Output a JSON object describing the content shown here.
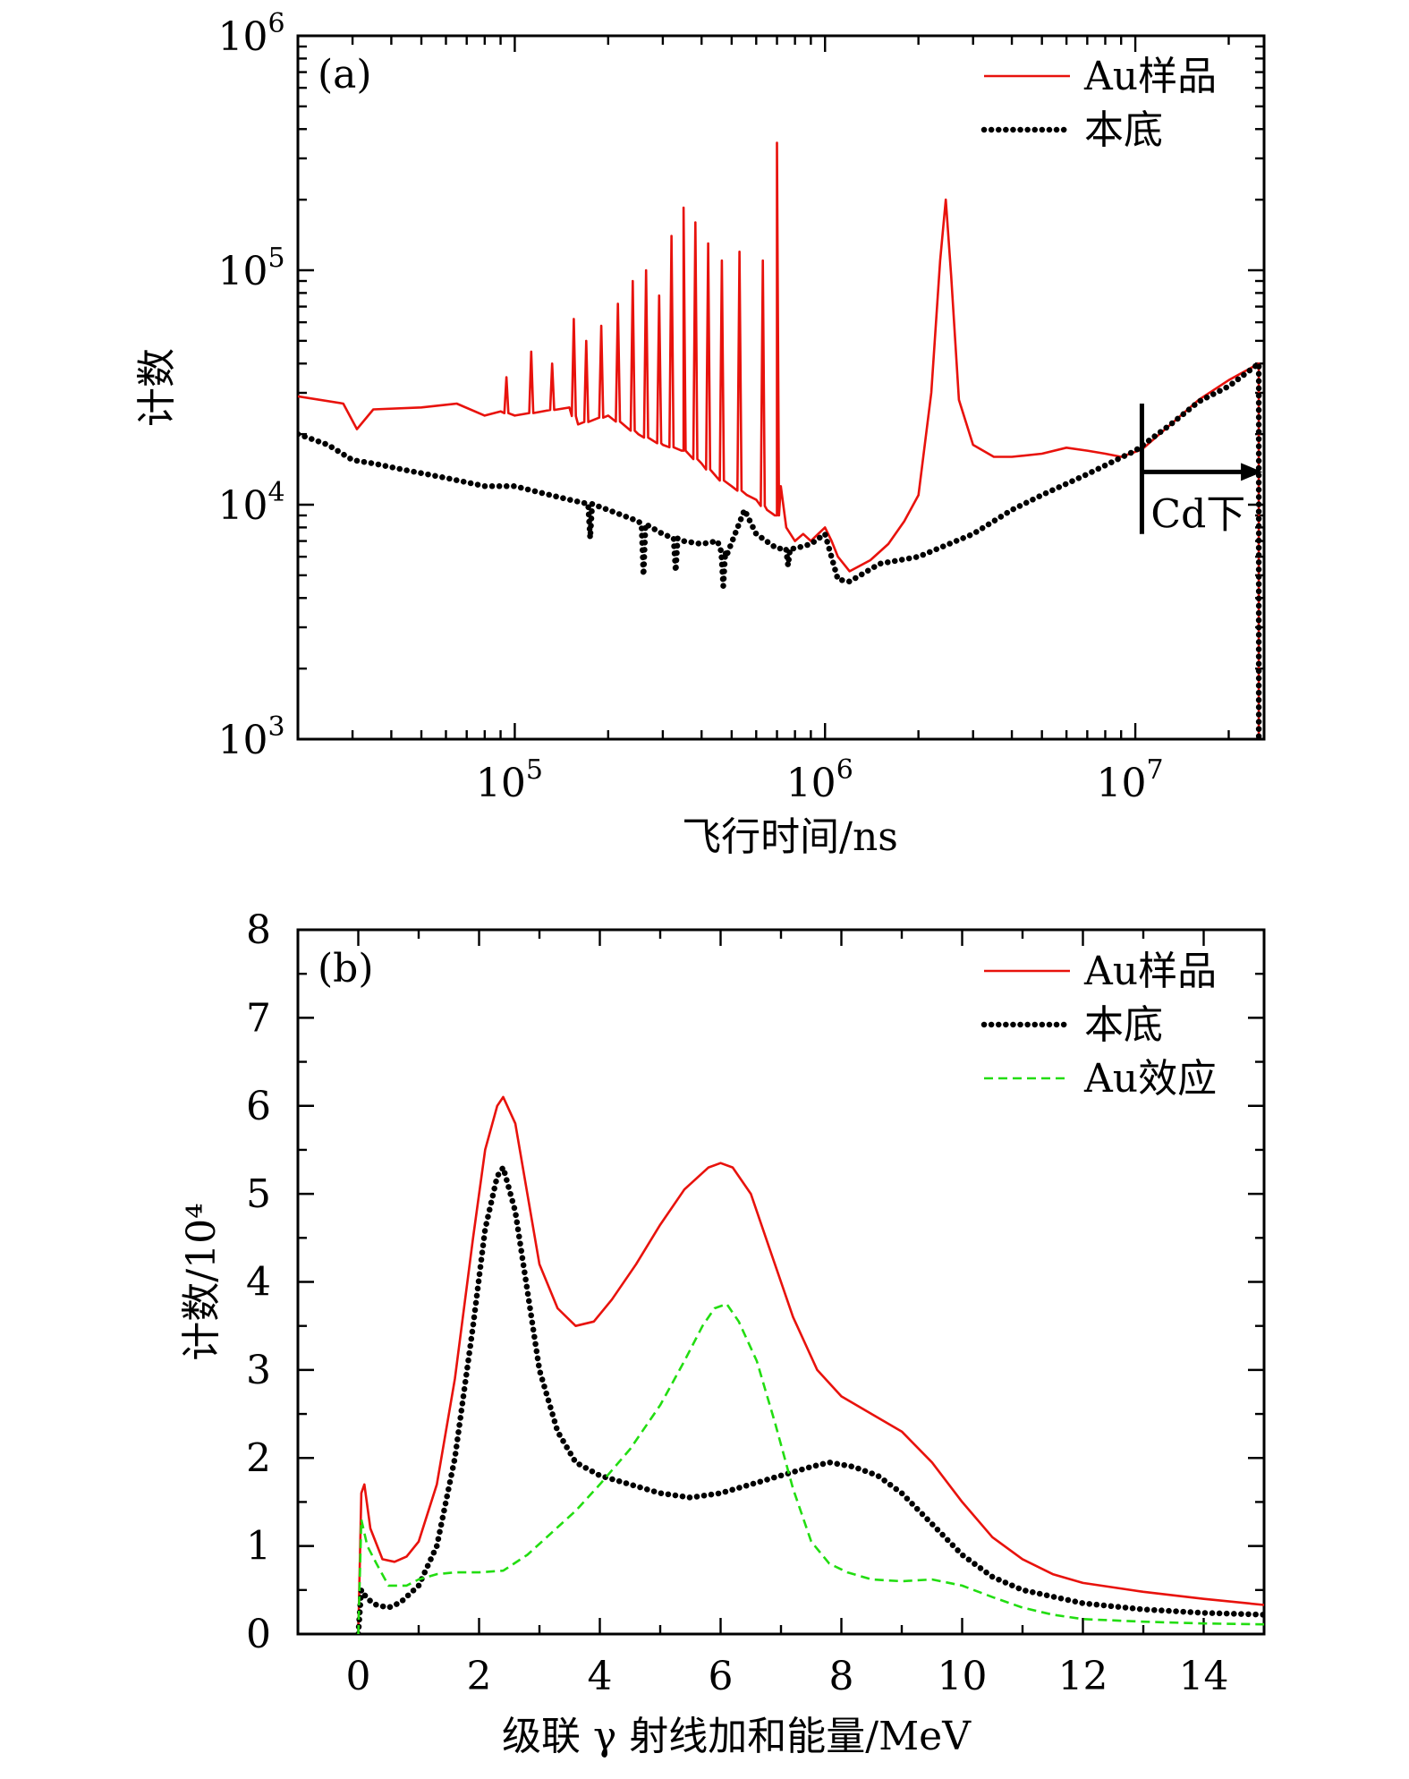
{
  "colors": {
    "au": "#e8120c",
    "bg": "#000000",
    "effect": "#22dd11"
  },
  "chart_data": [
    {
      "panel_label": "(a)",
      "type": "line",
      "xscale": "log",
      "yscale": "log",
      "xlabel": "飞行时间/ns",
      "ylabel": "计数",
      "xlim": [
        20000,
        26000000
      ],
      "ylim": [
        1000,
        1000000
      ],
      "xticks": [
        {
          "base": "10",
          "exp": "5"
        },
        {
          "base": "10",
          "exp": "6"
        },
        {
          "base": "10",
          "exp": "7"
        }
      ],
      "yticks": [
        {
          "base": "10",
          "exp": "3"
        },
        {
          "base": "10",
          "exp": "4"
        },
        {
          "base": "10",
          "exp": "5"
        },
        {
          "base": "10",
          "exp": "6"
        }
      ],
      "legend": [
        "Au样品",
        "本底"
      ],
      "annotation": "Cd下",
      "annotation_x_range": [
        10500000,
        25000000
      ],
      "series": [
        {
          "name": "Au样品",
          "style": "solid",
          "x": [
            20000,
            28000,
            31000,
            35000,
            50000,
            65000,
            80000,
            90000,
            100000,
            150000,
            160000,
            200000,
            250000,
            300000,
            350000,
            400000,
            450000,
            500000,
            560000,
            600000,
            650000,
            700000,
            720000,
            750000,
            800000,
            850000,
            900000,
            950000,
            1000000,
            1050000,
            1100000,
            1200000,
            1400000,
            1600000,
            1800000,
            2000000,
            2200000,
            2350000,
            2450000,
            2550000,
            2700000,
            3000000,
            3500000,
            4000000,
            5000000,
            6000000,
            7000000,
            8000000,
            9000000,
            10500000,
            13000000,
            16000000,
            20000000,
            25000000,
            25000000
          ],
          "y": [
            29000,
            27000,
            21000,
            25500,
            26000,
            27000,
            24000,
            25000,
            24000,
            26000,
            22000,
            24000,
            20000,
            18000,
            17000,
            15000,
            13000,
            12000,
            11000,
            10500,
            9500,
            9000,
            12000,
            8000,
            7000,
            7500,
            7000,
            7500,
            8000,
            7000,
            6000,
            5200,
            5800,
            6800,
            8500,
            11000,
            30000,
            110000,
            200000,
            95000,
            28000,
            18000,
            16000,
            16000,
            16500,
            17500,
            17000,
            16500,
            16000,
            17200,
            22000,
            28000,
            34000,
            40000,
            1000
          ],
          "spikes": [
            {
              "x": 94000,
              "y": 35000
            },
            {
              "x": 113000,
              "y": 45000
            },
            {
              "x": 132000,
              "y": 40000
            },
            {
              "x": 155000,
              "y": 62000
            },
            {
              "x": 170000,
              "y": 50000
            },
            {
              "x": 190000,
              "y": 58000
            },
            {
              "x": 215000,
              "y": 72000
            },
            {
              "x": 240000,
              "y": 90000
            },
            {
              "x": 265000,
              "y": 100000
            },
            {
              "x": 292000,
              "y": 78000
            },
            {
              "x": 320000,
              "y": 140000
            },
            {
              "x": 350000,
              "y": 185000
            },
            {
              "x": 382000,
              "y": 160000
            },
            {
              "x": 420000,
              "y": 130000
            },
            {
              "x": 465000,
              "y": 110000
            },
            {
              "x": 530000,
              "y": 120000
            },
            {
              "x": 630000,
              "y": 110000
            },
            {
              "x": 700000,
              "y": 350000
            }
          ]
        },
        {
          "name": "本底",
          "style": "dotted",
          "x": [
            20000,
            25000,
            30000,
            35000,
            45000,
            60000,
            80000,
            100000,
            130000,
            150000,
            180000,
            200000,
            250000,
            300000,
            350000,
            400000,
            450000,
            480000,
            550000,
            600000,
            700000,
            800000,
            900000,
            1000000,
            1100000,
            1200000,
            1500000,
            2000000,
            3000000,
            4000000,
            5000000,
            7000000,
            10000000,
            13000000,
            16000000,
            20000000,
            25000000,
            25000000
          ],
          "y": [
            20000,
            18000,
            15500,
            15000,
            14000,
            13000,
            12000,
            12000,
            11000,
            10500,
            10000,
            9500,
            8500,
            7500,
            7000,
            6800,
            7000,
            6000,
            9500,
            7500,
            6500,
            6500,
            6800,
            7500,
            4800,
            4700,
            5600,
            6000,
            7500,
            9500,
            11000,
            13500,
            17000,
            22000,
            27500,
            32000,
            40000,
            1000
          ],
          "dips": [
            {
              "x": 175000,
              "y": 7200
            },
            {
              "x": 260000,
              "y": 5000
            },
            {
              "x": 330000,
              "y": 5200
            },
            {
              "x": 470000,
              "y": 4500
            },
            {
              "x": 760000,
              "y": 5500
            }
          ]
        }
      ]
    },
    {
      "panel_label": "(b)",
      "type": "line",
      "xlabel": "级联 γ 射线加和能量/MeV",
      "ylabel": "计数/10⁴",
      "xlim": [
        -1,
        15
      ],
      "ylim": [
        0,
        8
      ],
      "xticks": [
        "0",
        "2",
        "4",
        "6",
        "8",
        "10",
        "12",
        "14"
      ],
      "yticks": [
        "0",
        "1",
        "2",
        "3",
        "4",
        "5",
        "6",
        "7",
        "8"
      ],
      "legend": [
        "Au样品",
        "本底",
        "Au效应"
      ],
      "series": [
        {
          "name": "Au样品",
          "style": "solid",
          "x": [
            0,
            0.05,
            0.1,
            0.2,
            0.4,
            0.6,
            0.8,
            1.0,
            1.3,
            1.6,
            1.9,
            2.1,
            2.3,
            2.4,
            2.6,
            2.8,
            3.0,
            3.3,
            3.6,
            3.9,
            4.2,
            4.6,
            5.0,
            5.4,
            5.8,
            6.0,
            6.2,
            6.5,
            6.8,
            7.2,
            7.6,
            8.0,
            8.5,
            9.0,
            9.5,
            10.0,
            10.5,
            11.0,
            11.5,
            12.0,
            13.0,
            14.0,
            15.0
          ],
          "y": [
            0,
            1.6,
            1.7,
            1.2,
            0.85,
            0.82,
            0.88,
            1.05,
            1.7,
            2.9,
            4.5,
            5.5,
            6.0,
            6.1,
            5.8,
            5.0,
            4.2,
            3.7,
            3.5,
            3.55,
            3.8,
            4.2,
            4.65,
            5.05,
            5.3,
            5.35,
            5.3,
            5.0,
            4.4,
            3.6,
            3.0,
            2.7,
            2.5,
            2.3,
            1.95,
            1.5,
            1.1,
            0.85,
            0.68,
            0.58,
            0.48,
            0.4,
            0.33
          ]
        },
        {
          "name": "本底",
          "style": "dotted",
          "x": [
            0,
            0.05,
            0.15,
            0.3,
            0.5,
            0.7,
            1.0,
            1.3,
            1.6,
            1.9,
            2.1,
            2.3,
            2.4,
            2.6,
            2.8,
            3.0,
            3.3,
            3.6,
            4.0,
            4.5,
            5.0,
            5.5,
            6.0,
            6.5,
            7.0,
            7.5,
            7.8,
            8.2,
            8.6,
            9.0,
            9.5,
            10.0,
            10.5,
            11.0,
            12.0,
            13.0,
            14.0,
            15.0
          ],
          "y": [
            0,
            0.5,
            0.4,
            0.33,
            0.3,
            0.36,
            0.55,
            1.0,
            2.0,
            3.5,
            4.6,
            5.2,
            5.3,
            4.8,
            3.9,
            3.0,
            2.3,
            1.95,
            1.8,
            1.7,
            1.6,
            1.55,
            1.6,
            1.7,
            1.8,
            1.9,
            1.95,
            1.9,
            1.8,
            1.6,
            1.25,
            0.9,
            0.65,
            0.5,
            0.35,
            0.28,
            0.24,
            0.22
          ]
        },
        {
          "name": "Au效应",
          "style": "dashed",
          "x": [
            0,
            0.05,
            0.15,
            0.3,
            0.5,
            0.8,
            1.0,
            1.3,
            1.6,
            2.0,
            2.4,
            2.8,
            3.2,
            3.6,
            4.0,
            4.5,
            5.0,
            5.4,
            5.7,
            5.9,
            6.1,
            6.3,
            6.6,
            6.9,
            7.2,
            7.5,
            7.8,
            8.1,
            8.5,
            9.0,
            9.5,
            10.0,
            10.5,
            11.0,
            11.5,
            12.0,
            13.0,
            14.0,
            15.0
          ],
          "y": [
            0,
            1.3,
            1.0,
            0.8,
            0.55,
            0.55,
            0.62,
            0.68,
            0.7,
            0.7,
            0.72,
            0.9,
            1.15,
            1.4,
            1.7,
            2.1,
            2.6,
            3.1,
            3.5,
            3.7,
            3.75,
            3.55,
            3.1,
            2.4,
            1.65,
            1.05,
            0.8,
            0.7,
            0.62,
            0.6,
            0.62,
            0.55,
            0.42,
            0.3,
            0.22,
            0.17,
            0.14,
            0.12,
            0.11
          ]
        }
      ]
    }
  ]
}
